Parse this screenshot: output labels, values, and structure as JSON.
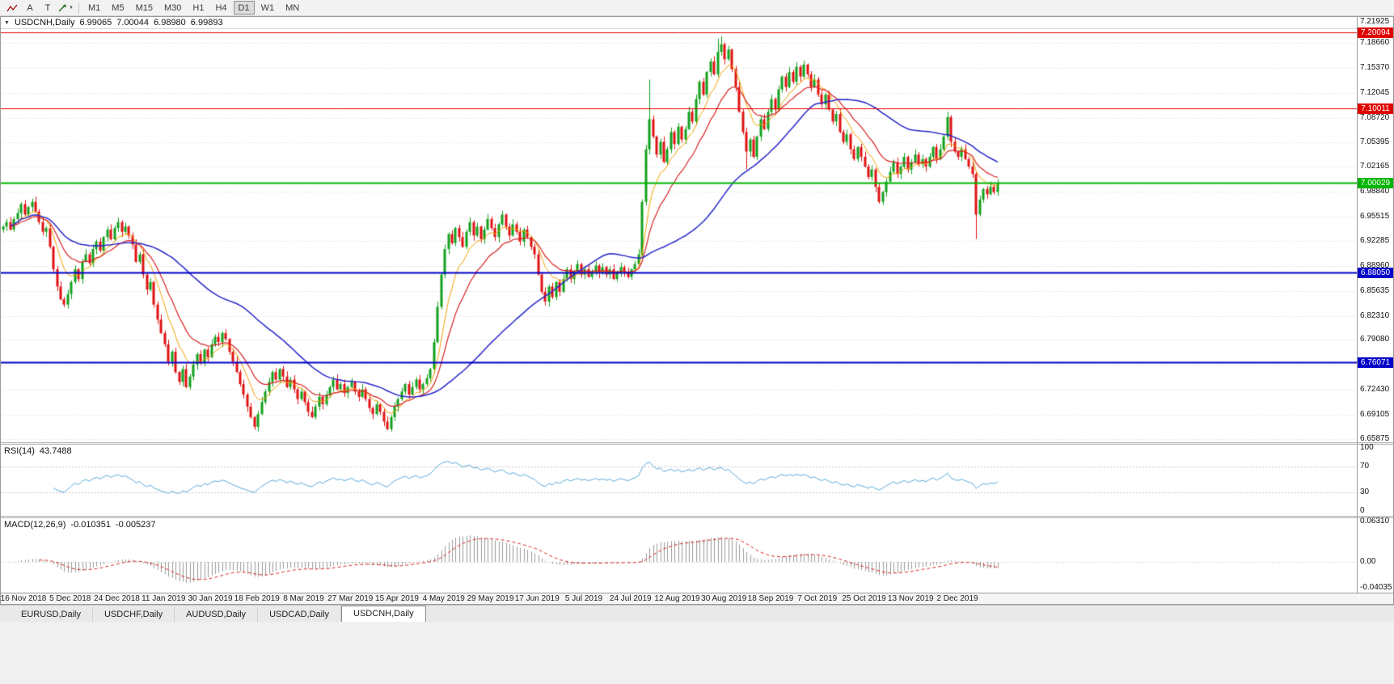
{
  "toolbar": {
    "tools": [
      {
        "name": "line-studies-icon"
      },
      {
        "name": "text-tool",
        "label": "A"
      },
      {
        "name": "pointer-tool",
        "label": "T"
      },
      {
        "name": "shapes-dropdown",
        "caret": "▼"
      }
    ],
    "timeframes": [
      "M1",
      "M5",
      "M15",
      "M30",
      "H1",
      "H4",
      "D1",
      "W1",
      "MN"
    ],
    "active_timeframe": "D1"
  },
  "chart_header": {
    "collapse_icon": "▼",
    "symbol": "USDCNH,Daily",
    "open": "6.99065",
    "high": "7.00044",
    "low": "6.98980",
    "close": "6.99893"
  },
  "price_scale": {
    "ticks": [
      "7.21925",
      "7.18660",
      "7.15370",
      "7.12045",
      "7.08720",
      "7.05395",
      "7.02165",
      "6.98840",
      "6.95515",
      "6.92285",
      "6.88960",
      "6.85635",
      "6.82310",
      "6.79080",
      "6.75755",
      "6.72430",
      "6.69105",
      "6.65875"
    ]
  },
  "hlines": [
    {
      "price": 7.20094,
      "label": "7.20094",
      "color": "#e00000",
      "width": 1
    },
    {
      "price": 7.10011,
      "label": "7.10011",
      "color": "#e00000",
      "width": 1
    },
    {
      "price": 7.00029,
      "label": "7.00029",
      "color": "#00b400",
      "width": 2
    },
    {
      "price": 6.8805,
      "label": "6.88050",
      "color": "#0000c8",
      "width": 2
    },
    {
      "price": 6.76071,
      "label": "6.76071",
      "color": "#0000c8",
      "width": 2
    }
  ],
  "rsi_panel": {
    "label": "RSI(14)",
    "value": "43.7488",
    "scale": [
      "100",
      "70",
      "30",
      "0"
    ],
    "levels": [
      70,
      30
    ],
    "line_color": "#57a8d8"
  },
  "macd_panel": {
    "label": "MACD(12,26,9)",
    "value_main": "-0.010351",
    "value_signal": "-0.005237",
    "scale_top": "0.06310",
    "scale_zero": "0.00",
    "scale_bottom": "-0.04035",
    "range": [
      -0.04035,
      0.0631
    ],
    "histogram_color": "#9a9a9a",
    "signal_color": "#d82020"
  },
  "x_axis": {
    "dates": [
      "16 Nov 2018",
      "5 Dec 2018",
      "24 Dec 2018",
      "11 Jan 2019",
      "30 Jan 2019",
      "18 Feb 2019",
      "8 Mar 2019",
      "27 Mar 2019",
      "15 Apr 2019",
      "4 May 2019",
      "29 May 2019",
      "17 Jun 2019",
      "5 Jul 2019",
      "24 Jul 2019",
      "12 Aug 2019",
      "30 Aug 2019",
      "18 Sep 2019",
      "7 Oct 2019",
      "25 Oct 2019",
      "13 Nov 2019",
      "2 Dec 2019"
    ]
  },
  "tabs": {
    "items": [
      "EURUSD,Daily",
      "USDCHF,Daily",
      "AUDUSD,Daily",
      "USDCAD,Daily",
      "USDCNH,Daily"
    ],
    "active": "USDCNH,Daily"
  },
  "chart_data": {
    "type": "candlestick",
    "symbol": "USDCNH",
    "timeframe": "Daily",
    "price_range": [
      6.65875,
      7.21925
    ],
    "bar_step": 4.44,
    "first_open": 6.938,
    "closes": [
      6.942,
      6.948,
      6.938,
      6.952,
      6.96,
      6.972,
      6.958,
      6.968,
      6.975,
      6.962,
      6.948,
      6.935,
      6.94,
      6.915,
      6.885,
      6.862,
      6.845,
      6.838,
      6.852,
      6.868,
      6.885,
      6.872,
      6.895,
      6.905,
      6.893,
      6.912,
      6.922,
      6.91,
      6.928,
      6.938,
      6.925,
      6.94,
      6.948,
      6.935,
      6.942,
      6.93,
      6.918,
      6.895,
      6.905,
      6.878,
      6.858,
      6.868,
      6.838,
      6.818,
      6.8,
      6.785,
      6.762,
      6.775,
      6.748,
      6.735,
      6.752,
      6.728,
      6.742,
      6.758,
      6.772,
      6.76,
      6.778,
      6.768,
      6.785,
      6.795,
      6.788,
      6.8,
      6.792,
      6.775,
      6.762,
      6.748,
      6.732,
      6.718,
      6.702,
      6.688,
      6.675,
      6.692,
      6.708,
      6.722,
      6.735,
      6.748,
      6.738,
      6.752,
      6.742,
      6.728,
      6.738,
      6.725,
      6.712,
      6.722,
      6.708,
      6.695,
      6.688,
      6.702,
      6.715,
      6.705,
      6.718,
      6.728,
      6.738,
      6.725,
      6.732,
      6.72,
      6.728,
      6.735,
      6.722,
      6.715,
      6.725,
      6.712,
      6.7,
      6.692,
      6.705,
      6.695,
      6.682,
      6.672,
      6.688,
      6.702,
      6.712,
      6.722,
      6.732,
      6.718,
      6.728,
      6.738,
      6.725,
      6.732,
      6.74,
      6.752,
      6.788,
      6.835,
      6.878,
      6.912,
      6.932,
      6.92,
      6.94,
      6.928,
      6.915,
      6.935,
      6.948,
      6.93,
      6.942,
      6.925,
      6.938,
      6.952,
      6.94,
      6.928,
      6.945,
      6.958,
      6.942,
      6.93,
      6.945,
      6.935,
      6.922,
      6.938,
      6.928,
      6.915,
      6.905,
      6.878,
      6.855,
      6.842,
      6.862,
      6.848,
      6.868,
      6.855,
      6.872,
      6.885,
      6.872,
      6.882,
      6.892,
      6.878,
      6.885,
      6.875,
      6.882,
      6.89,
      6.88,
      6.888,
      6.878,
      6.885,
      6.872,
      6.88,
      6.888,
      6.882,
      6.875,
      6.885,
      6.892,
      6.905,
      6.975,
      7.045,
      7.085,
      7.062,
      7.038,
      7.055,
      7.028,
      7.045,
      7.068,
      7.052,
      7.075,
      7.058,
      7.072,
      7.095,
      7.082,
      7.112,
      7.135,
      7.118,
      7.148,
      7.162,
      7.145,
      7.175,
      7.185,
      7.165,
      7.178,
      7.152,
      7.128,
      7.095,
      7.068,
      7.042,
      7.058,
      7.035,
      7.062,
      7.085,
      7.072,
      7.095,
      7.112,
      7.098,
      7.125,
      7.142,
      7.128,
      7.148,
      7.135,
      7.155,
      7.142,
      7.158,
      7.145,
      7.128,
      7.138,
      7.118,
      7.105,
      7.118,
      7.098,
      7.082,
      7.092,
      7.068,
      7.055,
      7.065,
      7.045,
      7.032,
      7.048,
      7.035,
      7.022,
      7.008,
      7.018,
      6.995,
      6.975,
      6.988,
      7.002,
      7.015,
      7.028,
      7.012,
      7.022,
      7.035,
      7.018,
      7.028,
      7.038,
      7.025,
      7.032,
      7.022,
      7.035,
      7.048,
      7.032,
      7.045,
      7.062,
      7.088,
      7.055,
      7.042,
      7.035,
      7.045,
      7.032,
      7.022,
      7.012,
      6.958,
      6.978,
      6.992,
      6.985,
      6.995,
      6.988,
      6.999
    ],
    "wick_high_overrides": {
      "180": 7.138,
      "199": 7.1925,
      "200": 7.196,
      "263": 7.095
    },
    "wick_low_overrides": {
      "207": 7.018,
      "271": 6.9255
    },
    "colors": {
      "up": "#12a11c",
      "down": "#e01212",
      "ma_fast": "#f2a000",
      "ma_mid": "#d82020",
      "ma_slow": "#2626c8"
    },
    "ma_periods": {
      "fast": 8,
      "mid": 16,
      "slow": 48
    },
    "indicators": {
      "rsi_period": 14,
      "macd": [
        12,
        26,
        9
      ]
    }
  }
}
